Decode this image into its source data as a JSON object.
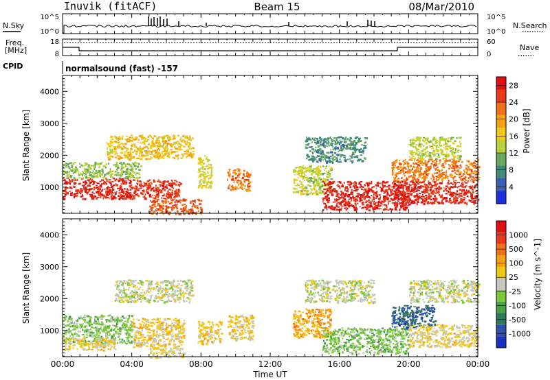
{
  "header": {
    "station": "Inuvik (fitACF)",
    "beam": "Beam 15",
    "date": "08/Mar/2010"
  },
  "noise_panel": {
    "left_label": "N.Sky",
    "left_ticks": [
      "10^5",
      "10^0"
    ],
    "right_ticks": [
      "10^5",
      "10^0"
    ],
    "right_label": "N.Search"
  },
  "freq_panel": {
    "left_label_line1": "Freq.",
    "left_label_line2": "[MHz]",
    "left_ticks": [
      "18",
      "8"
    ],
    "right_ticks": [
      "60",
      "0"
    ],
    "right_label": "Nave"
  },
  "cpid": {
    "label": "CPID",
    "value": "normalsound (fast) -157"
  },
  "chart_data": [
    {
      "type": "heatmap",
      "title": "",
      "ylabel": "Slant Range [km]",
      "yticks": [
        "1000",
        "2000",
        "3000",
        "4000"
      ],
      "ylim": [
        180,
        4500
      ],
      "xlim": [
        "00:00",
        "24:00"
      ],
      "colorbar": {
        "label": "Power [dB]",
        "ticks": [
          "4",
          "8",
          "12",
          "16",
          "20",
          "24",
          "28"
        ],
        "range": [
          0,
          30
        ],
        "colors": [
          "#1a2fe0",
          "#3a5fb0",
          "#3f8a78",
          "#6aa860",
          "#b8d23c",
          "#f0c818",
          "#f5a010",
          "#f07018",
          "#e63a18",
          "#e01010"
        ]
      },
      "echo_regions": [
        {
          "t": [
            0.0,
            4.0
          ],
          "r": [
            650,
            1300
          ],
          "value": 27
        },
        {
          "t": [
            0.0,
            4.5
          ],
          "r": [
            1300,
            1800
          ],
          "value": 12
        },
        {
          "t": [
            2.5,
            7.5
          ],
          "r": [
            1900,
            2650
          ],
          "value": 17
        },
        {
          "t": [
            4.0,
            6.8
          ],
          "r": [
            650,
            1250
          ],
          "value": 26
        },
        {
          "t": [
            5.0,
            8.0
          ],
          "r": [
            180,
            650
          ],
          "value": 24
        },
        {
          "t": [
            7.8,
            8.6
          ],
          "r": [
            1000,
            2000
          ],
          "value": 15
        },
        {
          "t": [
            9.5,
            10.8
          ],
          "r": [
            900,
            1600
          ],
          "value": 22
        },
        {
          "t": [
            13.3,
            15.5
          ],
          "r": [
            800,
            1700
          ],
          "value": 14
        },
        {
          "t": [
            14.0,
            17.5
          ],
          "r": [
            1800,
            2600
          ],
          "value": 8
        },
        {
          "t": [
            15.0,
            20.0
          ],
          "r": [
            300,
            1200
          ],
          "value": 27
        },
        {
          "t": [
            19.0,
            24.0
          ],
          "r": [
            1200,
            1900
          ],
          "value": 22
        },
        {
          "t": [
            19.0,
            24.0
          ],
          "r": [
            500,
            1200
          ],
          "value": 27
        },
        {
          "t": [
            20.0,
            23.0
          ],
          "r": [
            1900,
            2600
          ],
          "value": 14
        }
      ]
    },
    {
      "type": "heatmap",
      "title": "",
      "ylabel": "Slant Range [km]",
      "yticks": [
        "1000",
        "2000",
        "3000",
        "4000"
      ],
      "ylim": [
        180,
        4500
      ],
      "xlim": [
        "00:00",
        "24:00"
      ],
      "xticks": [
        "00:00",
        "04:00",
        "08:00",
        "12:00",
        "16:00",
        "20:00",
        "00:00"
      ],
      "xlabel": "Time UT",
      "colorbar": {
        "label": "Velocity [m s^-1]",
        "ticks": [
          "1000",
          "500",
          "100",
          "25",
          "-25",
          "-100",
          "-500",
          "-1000"
        ],
        "range": [
          -1200,
          1200
        ],
        "colors": [
          "#1a30c0",
          "#3050a8",
          "#2e7a5a",
          "#4aa048",
          "#7cc83a",
          "#c8c8c0",
          "#f0c818",
          "#f5a010",
          "#f07018",
          "#e83a18",
          "#e01010"
        ]
      },
      "echo_regions": [
        {
          "t": [
            0.0,
            4.0
          ],
          "r": [
            600,
            1500
          ],
          "value": -200
        },
        {
          "t": [
            0.0,
            3.0
          ],
          "r": [
            400,
            800
          ],
          "value": 150
        },
        {
          "t": [
            3.0,
            7.5
          ],
          "r": [
            1900,
            2600
          ],
          "value": 0
        },
        {
          "t": [
            4.0,
            7.0
          ],
          "r": [
            500,
            1400
          ],
          "value": 200
        },
        {
          "t": [
            5.0,
            7.0
          ],
          "r": [
            180,
            500
          ],
          "value": 90
        },
        {
          "t": [
            7.8,
            9.2
          ],
          "r": [
            600,
            1300
          ],
          "value": 200
        },
        {
          "t": [
            9.5,
            11.0
          ],
          "r": [
            700,
            1500
          ],
          "value": 200
        },
        {
          "t": [
            13.3,
            15.5
          ],
          "r": [
            800,
            1700
          ],
          "value": 400
        },
        {
          "t": [
            14.0,
            18.0
          ],
          "r": [
            1900,
            2600
          ],
          "value": 0
        },
        {
          "t": [
            15.0,
            20.0
          ],
          "r": [
            300,
            1100
          ],
          "value": -250
        },
        {
          "t": [
            19.0,
            21.5
          ],
          "r": [
            1100,
            1800
          ],
          "value": -800
        },
        {
          "t": [
            20.0,
            24.0
          ],
          "r": [
            500,
            1200
          ],
          "value": 150
        },
        {
          "t": [
            20.0,
            24.0
          ],
          "r": [
            1900,
            2600
          ],
          "value": 0
        }
      ]
    }
  ]
}
